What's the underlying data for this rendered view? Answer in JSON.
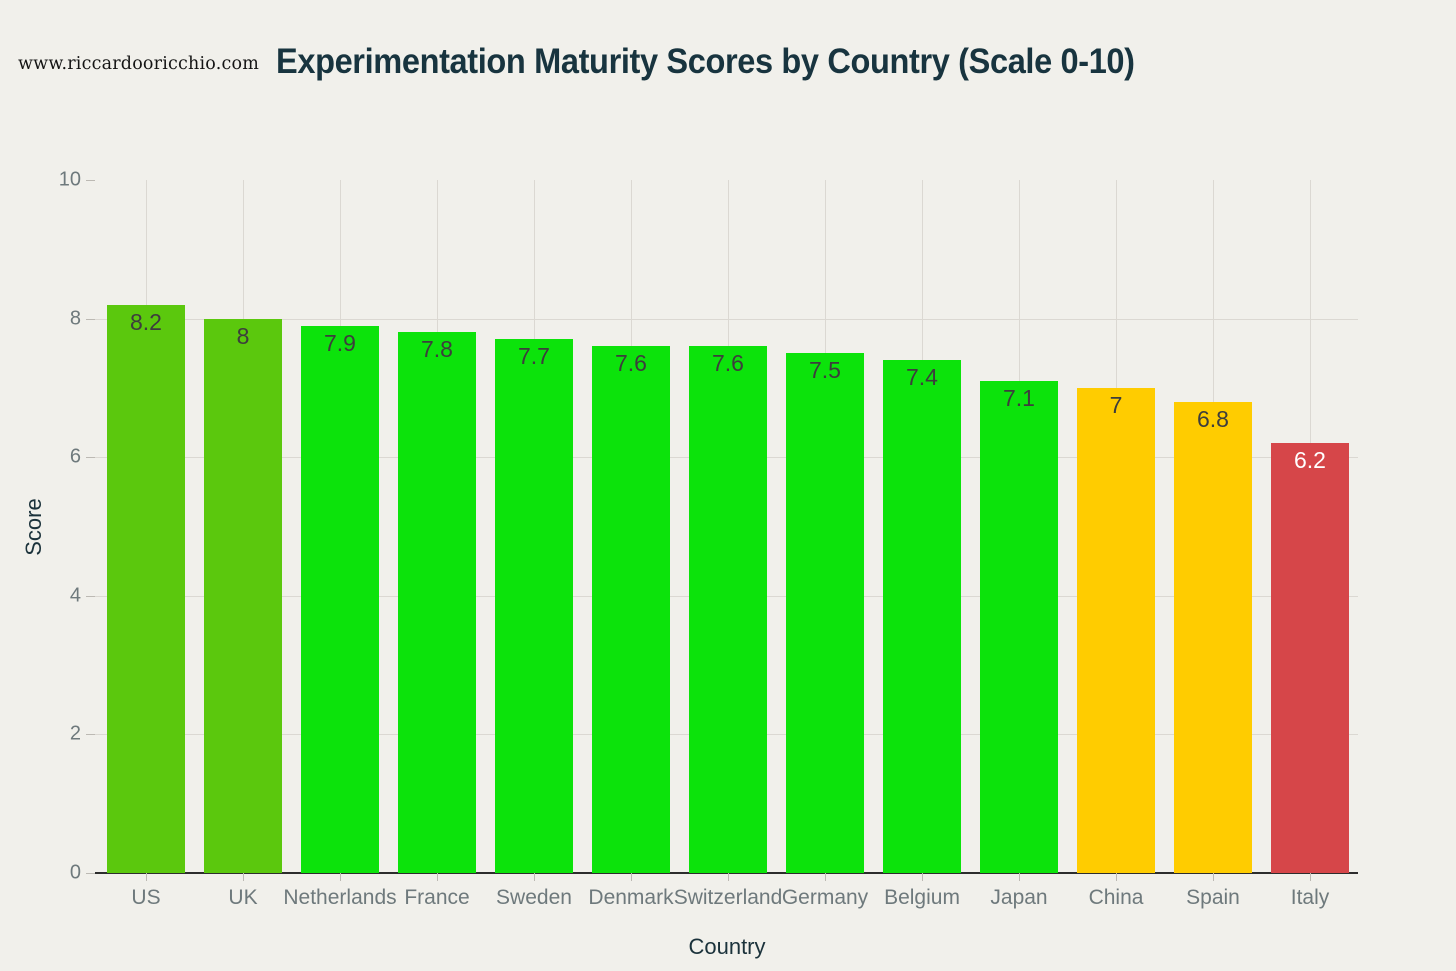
{
  "header": {
    "watermark": "www.riccardooricchio.com",
    "title": "Experimentation Maturity Scores by Country (Scale 0-10)"
  },
  "colors": {
    "background": "#f1f0eb",
    "title": "#18343f",
    "axis_label": "#1b323b",
    "tick_label": "#6e797c",
    "grid": "#dbd8d2",
    "axis_line": "#2d2d2d",
    "tick_mark": "#bcb9b3",
    "watermark": "#141414"
  },
  "chart_data": {
    "type": "bar",
    "title": "Experimentation Maturity Scores by Country (Scale 0-10)",
    "xlabel": "Country",
    "ylabel": "Score",
    "ylim": [
      0,
      10
    ],
    "yticks": [
      0,
      2,
      4,
      6,
      8,
      10
    ],
    "ygrid": [
      2,
      4,
      6,
      8
    ],
    "grid": true,
    "legend": false,
    "categories": [
      "US",
      "UK",
      "Netherlands",
      "France",
      "Sweden",
      "Denmark",
      "Switzerland",
      "Germany",
      "Belgium",
      "Japan",
      "China",
      "Spain",
      "Italy"
    ],
    "values": [
      8.2,
      8,
      7.9,
      7.8,
      7.7,
      7.6,
      7.6,
      7.5,
      7.4,
      7.1,
      7,
      6.8,
      6.2
    ],
    "value_labels": [
      "8.2",
      "8",
      "7.9",
      "7.8",
      "7.7",
      "7.6",
      "7.6",
      "7.5",
      "7.4",
      "7.1",
      "7",
      "6.8",
      "6.2"
    ],
    "bar_colors": [
      "#5bc80d",
      "#5bc80d",
      "#0ce30b",
      "#0ce30b",
      "#0ce30b",
      "#0ce30b",
      "#0ce30b",
      "#0ce30b",
      "#0ce30b",
      "#0ce30b",
      "#ffcc00",
      "#ffcc00",
      "#d64649"
    ],
    "value_label_colors": [
      "#3d3d3d",
      "#3d3d3d",
      "#3d3d3d",
      "#3d3d3d",
      "#3d3d3d",
      "#3d3d3d",
      "#3d3d3d",
      "#3d3d3d",
      "#3d3d3d",
      "#3d3d3d",
      "#3d3d3d",
      "#3d3d3d",
      "#ffffff"
    ]
  }
}
